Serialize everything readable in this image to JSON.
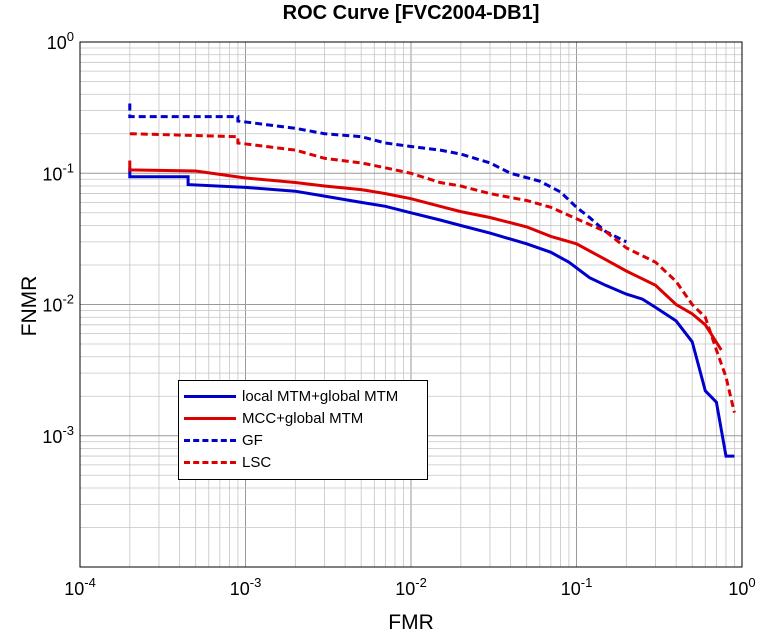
{
  "chart_data": {
    "type": "line",
    "title": "ROC Curve [FVC2004-DB1]",
    "xlabel": "FMR",
    "ylabel": "FNMR",
    "xscale": "log",
    "yscale": "log",
    "xlim": [
      0.0001,
      1
    ],
    "ylim": [
      0.0001,
      1
    ],
    "grid": true,
    "x_ticks": [
      {
        "base": "10",
        "exp": "-4",
        "value": 0.0001
      },
      {
        "base": "10",
        "exp": "-3",
        "value": 0.001
      },
      {
        "base": "10",
        "exp": "-2",
        "value": 0.01
      },
      {
        "base": "10",
        "exp": "-1",
        "value": 0.1
      },
      {
        "base": "10",
        "exp": "0",
        "value": 1
      }
    ],
    "y_ticks": [
      {
        "base": "10",
        "exp": "0",
        "value": 1
      },
      {
        "base": "10",
        "exp": "-1",
        "value": 0.1
      },
      {
        "base": "10",
        "exp": "-2",
        "value": 0.01
      },
      {
        "base": "10",
        "exp": "-3",
        "value": 0.001
      }
    ],
    "legend_position": "lower-left",
    "series": [
      {
        "name": "local MTM+global MTM",
        "color": "#0000cc",
        "style": "solid",
        "points": [
          [
            0.0002,
            0.11
          ],
          [
            0.0002,
            0.094
          ],
          [
            0.00045,
            0.094
          ],
          [
            0.00045,
            0.082
          ],
          [
            0.001,
            0.078
          ],
          [
            0.002,
            0.073
          ],
          [
            0.003,
            0.067
          ],
          [
            0.005,
            0.06
          ],
          [
            0.007,
            0.056
          ],
          [
            0.01,
            0.05
          ],
          [
            0.015,
            0.044
          ],
          [
            0.02,
            0.04
          ],
          [
            0.03,
            0.035
          ],
          [
            0.05,
            0.029
          ],
          [
            0.07,
            0.025
          ],
          [
            0.09,
            0.021
          ],
          [
            0.12,
            0.016
          ],
          [
            0.15,
            0.014
          ],
          [
            0.2,
            0.012
          ],
          [
            0.25,
            0.011
          ],
          [
            0.3,
            0.0095
          ],
          [
            0.4,
            0.0075
          ],
          [
            0.5,
            0.0052
          ],
          [
            0.6,
            0.0022
          ],
          [
            0.7,
            0.0018
          ],
          [
            0.8,
            0.0007
          ],
          [
            0.9,
            0.0007
          ]
        ]
      },
      {
        "name": "MCC+global MTM",
        "color": "#dd0000",
        "style": "solid",
        "points": [
          [
            0.0002,
            0.125
          ],
          [
            0.0002,
            0.106
          ],
          [
            0.0005,
            0.104
          ],
          [
            0.001,
            0.092
          ],
          [
            0.002,
            0.085
          ],
          [
            0.003,
            0.08
          ],
          [
            0.005,
            0.075
          ],
          [
            0.007,
            0.07
          ],
          [
            0.01,
            0.064
          ],
          [
            0.015,
            0.056
          ],
          [
            0.02,
            0.051
          ],
          [
            0.03,
            0.046
          ],
          [
            0.05,
            0.039
          ],
          [
            0.07,
            0.033
          ],
          [
            0.1,
            0.029
          ],
          [
            0.15,
            0.022
          ],
          [
            0.2,
            0.018
          ],
          [
            0.3,
            0.014
          ],
          [
            0.4,
            0.01
          ],
          [
            0.5,
            0.0085
          ],
          [
            0.6,
            0.007
          ],
          [
            0.75,
            0.0045
          ]
        ]
      },
      {
        "name": "GF",
        "color": "#0000cc",
        "style": "dashed",
        "points": [
          [
            0.0002,
            0.34
          ],
          [
            0.0002,
            0.27
          ],
          [
            0.0009,
            0.27
          ],
          [
            0.0009,
            0.25
          ],
          [
            0.002,
            0.22
          ],
          [
            0.003,
            0.2
          ],
          [
            0.005,
            0.19
          ],
          [
            0.007,
            0.17
          ],
          [
            0.01,
            0.16
          ],
          [
            0.015,
            0.15
          ],
          [
            0.02,
            0.14
          ],
          [
            0.03,
            0.12
          ],
          [
            0.04,
            0.1
          ],
          [
            0.06,
            0.087
          ],
          [
            0.08,
            0.072
          ],
          [
            0.1,
            0.055
          ],
          [
            0.12,
            0.046
          ],
          [
            0.15,
            0.036
          ],
          [
            0.2,
            0.03
          ]
        ]
      },
      {
        "name": "LSC",
        "color": "#dd0000",
        "style": "dashed",
        "points": [
          [
            0.0002,
            0.2
          ],
          [
            0.0009,
            0.19
          ],
          [
            0.0009,
            0.17
          ],
          [
            0.002,
            0.15
          ],
          [
            0.003,
            0.13
          ],
          [
            0.005,
            0.12
          ],
          [
            0.007,
            0.11
          ],
          [
            0.01,
            0.1
          ],
          [
            0.015,
            0.085
          ],
          [
            0.02,
            0.08
          ],
          [
            0.03,
            0.07
          ],
          [
            0.05,
            0.062
          ],
          [
            0.07,
            0.055
          ],
          [
            0.1,
            0.045
          ],
          [
            0.15,
            0.036
          ],
          [
            0.2,
            0.027
          ],
          [
            0.3,
            0.021
          ],
          [
            0.4,
            0.015
          ],
          [
            0.5,
            0.01
          ],
          [
            0.6,
            0.008
          ],
          [
            0.7,
            0.0045
          ],
          [
            0.8,
            0.0028
          ],
          [
            0.9,
            0.0015
          ]
        ]
      }
    ]
  }
}
